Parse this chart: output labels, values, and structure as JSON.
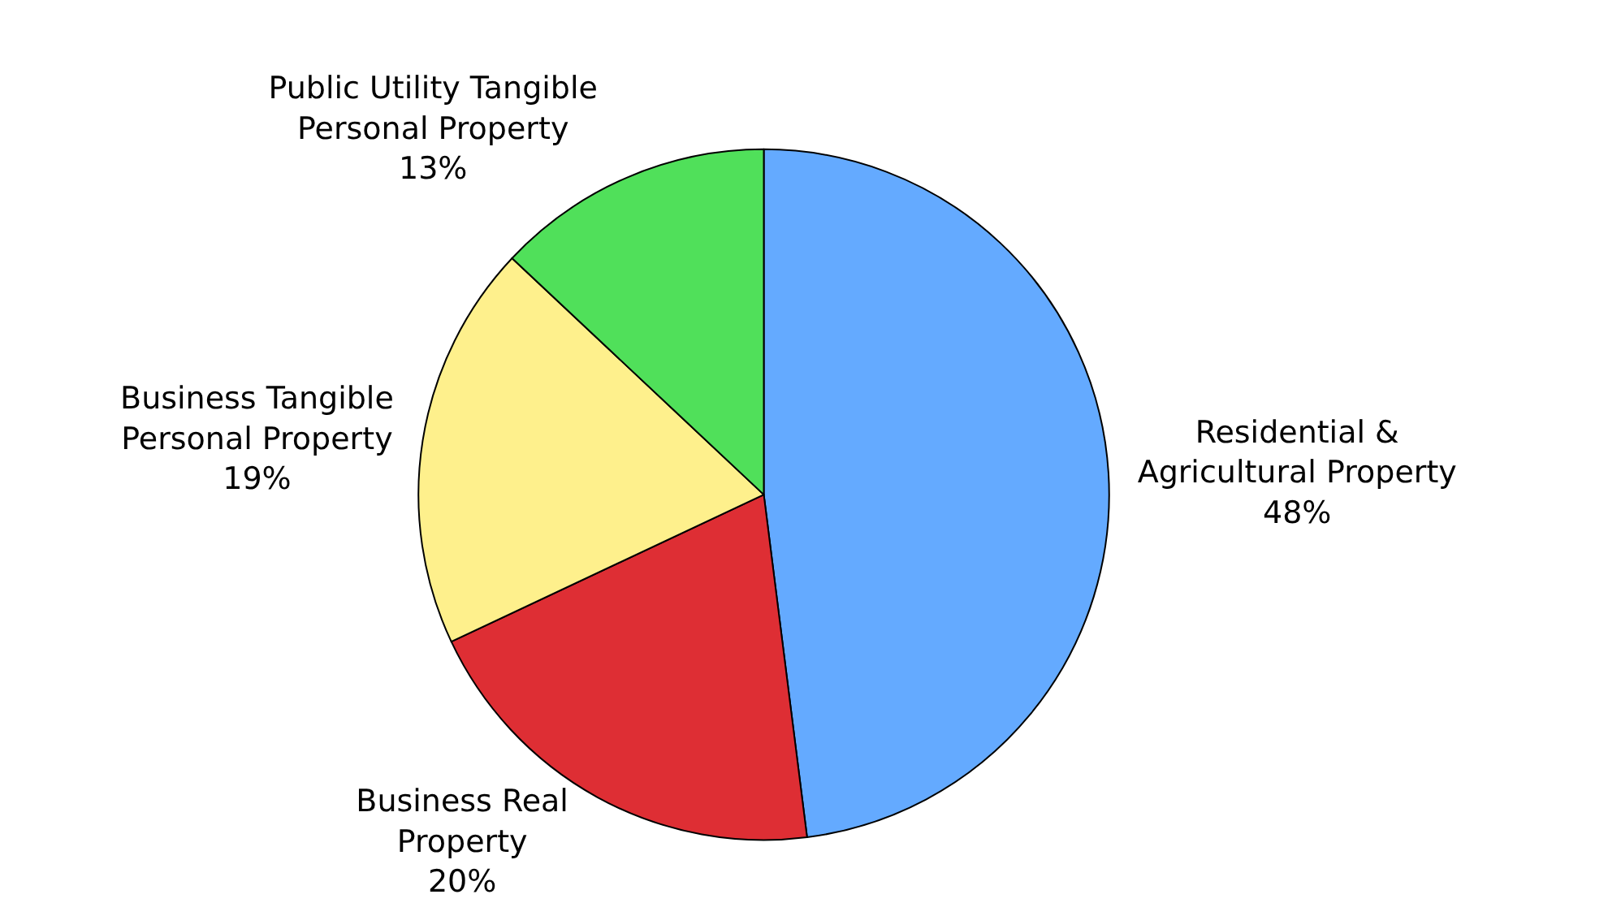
{
  "chart_data": {
    "type": "pie",
    "categories": [
      "Residential &\nAgricultural Property",
      "Business Real\nProperty",
      "Business Tangible\nPersonal Property",
      "Public Utility Tangible\nPersonal Property"
    ],
    "values": [
      48,
      20,
      19,
      13
    ],
    "value_labels": [
      "48%",
      "20%",
      "19%",
      "13%"
    ],
    "colors": [
      "#64aaff",
      "#de2e34",
      "#fef08c",
      "#50e05a"
    ],
    "legend": false
  }
}
